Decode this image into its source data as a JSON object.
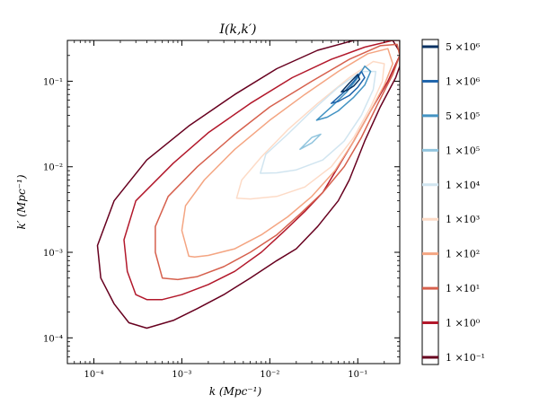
{
  "chart_data": {
    "type": "contour",
    "title": "I(k,k′)",
    "xlabel": "k (Mpc⁻¹)",
    "ylabel": "k′ (Mpc⁻¹)",
    "xscale": "log",
    "yscale": "log",
    "xlim": [
      5e-05,
      0.3
    ],
    "ylim": [
      5e-05,
      0.3
    ],
    "xticks": [
      {
        "value": 0.0001,
        "label": "10⁻⁴"
      },
      {
        "value": 0.001,
        "label": "10⁻³"
      },
      {
        "value": 0.01,
        "label": "10⁻²"
      },
      {
        "value": 0.1,
        "label": "10⁻¹"
      }
    ],
    "yticks": [
      {
        "value": 0.0001,
        "label": "10⁻⁴"
      },
      {
        "value": 0.001,
        "label": "10⁻³"
      },
      {
        "value": 0.01,
        "label": "10⁻²"
      },
      {
        "value": 0.1,
        "label": "10⁻¹"
      }
    ],
    "levels": [
      {
        "label": "1 ×10⁻¹",
        "value": 0.1,
        "color": "#67001f",
        "path": [
          [
            0.00017,
            0.00025
          ],
          [
            0.00012,
            0.0005
          ],
          [
            0.00011,
            0.0012
          ],
          [
            0.00017,
            0.004
          ],
          [
            0.0004,
            0.012
          ],
          [
            0.0012,
            0.03
          ],
          [
            0.004,
            0.07
          ],
          [
            0.012,
            0.14
          ],
          [
            0.035,
            0.23
          ],
          [
            0.09,
            0.3
          ],
          [
            0.25,
            0.3
          ],
          [
            0.3,
            0.22
          ],
          [
            0.3,
            0.15
          ],
          [
            0.27,
            0.11
          ],
          [
            0.18,
            0.05
          ],
          [
            0.12,
            0.02
          ],
          [
            0.08,
            0.007
          ],
          [
            0.06,
            0.004
          ],
          [
            0.035,
            0.002
          ],
          [
            0.02,
            0.0011
          ],
          [
            0.012,
            0.0008
          ],
          [
            0.006,
            0.0005
          ],
          [
            0.003,
            0.00032
          ],
          [
            0.0015,
            0.00022
          ],
          [
            0.0008,
            0.00016
          ],
          [
            0.0004,
            0.00013
          ],
          [
            0.00025,
            0.00015
          ],
          [
            0.00017,
            0.00025
          ]
        ]
      },
      {
        "label": "1 ×10⁰",
        "value": 1,
        "color": "#b2182b",
        "path": [
          [
            0.0003,
            0.00032
          ],
          [
            0.00024,
            0.0006
          ],
          [
            0.00022,
            0.0014
          ],
          [
            0.0003,
            0.004
          ],
          [
            0.0008,
            0.011
          ],
          [
            0.002,
            0.025
          ],
          [
            0.006,
            0.055
          ],
          [
            0.018,
            0.11
          ],
          [
            0.05,
            0.18
          ],
          [
            0.12,
            0.25
          ],
          [
            0.25,
            0.3
          ],
          [
            0.3,
            0.3
          ],
          [
            0.3,
            0.2
          ],
          [
            0.22,
            0.1
          ],
          [
            0.14,
            0.045
          ],
          [
            0.09,
            0.02
          ],
          [
            0.06,
            0.01
          ],
          [
            0.04,
            0.005
          ],
          [
            0.025,
            0.003
          ],
          [
            0.014,
            0.0017
          ],
          [
            0.008,
            0.001
          ],
          [
            0.004,
            0.0006
          ],
          [
            0.002,
            0.00042
          ],
          [
            0.001,
            0.00032
          ],
          [
            0.0006,
            0.00028
          ],
          [
            0.0004,
            0.00028
          ],
          [
            0.0003,
            0.00032
          ]
        ]
      },
      {
        "label": "1 ×10¹",
        "value": 10,
        "color": "#d6604d",
        "path": [
          [
            0.0006,
            0.0005
          ],
          [
            0.0005,
            0.001
          ],
          [
            0.0005,
            0.002
          ],
          [
            0.0007,
            0.0045
          ],
          [
            0.0015,
            0.01
          ],
          [
            0.004,
            0.024
          ],
          [
            0.01,
            0.05
          ],
          [
            0.03,
            0.1
          ],
          [
            0.08,
            0.18
          ],
          [
            0.18,
            0.26
          ],
          [
            0.28,
            0.27
          ],
          [
            0.3,
            0.2
          ],
          [
            0.25,
            0.12
          ],
          [
            0.17,
            0.055
          ],
          [
            0.11,
            0.022
          ],
          [
            0.07,
            0.01
          ],
          [
            0.04,
            0.005
          ],
          [
            0.022,
            0.0028
          ],
          [
            0.012,
            0.0016
          ],
          [
            0.006,
            0.001
          ],
          [
            0.003,
            0.00068
          ],
          [
            0.0015,
            0.00052
          ],
          [
            0.0009,
            0.00048
          ],
          [
            0.0006,
            0.0005
          ]
        ]
      },
      {
        "label": "1 ×10²",
        "value": 100,
        "color": "#f4a582",
        "path": [
          [
            0.0012,
            0.0009
          ],
          [
            0.001,
            0.0018
          ],
          [
            0.0011,
            0.0035
          ],
          [
            0.0018,
            0.007
          ],
          [
            0.004,
            0.016
          ],
          [
            0.01,
            0.035
          ],
          [
            0.025,
            0.07
          ],
          [
            0.06,
            0.13
          ],
          [
            0.13,
            0.21
          ],
          [
            0.22,
            0.24
          ],
          [
            0.25,
            0.16
          ],
          [
            0.2,
            0.09
          ],
          [
            0.14,
            0.045
          ],
          [
            0.09,
            0.02
          ],
          [
            0.055,
            0.009
          ],
          [
            0.03,
            0.0045
          ],
          [
            0.016,
            0.0026
          ],
          [
            0.008,
            0.0016
          ],
          [
            0.004,
            0.0011
          ],
          [
            0.002,
            0.00092
          ],
          [
            0.0014,
            0.00088
          ],
          [
            0.0012,
            0.0009
          ]
        ]
      },
      {
        "label": "1 ×10³",
        "value": 1000,
        "color": "#fddbc7",
        "path": [
          [
            0.0042,
            0.0043
          ],
          [
            0.0048,
            0.007
          ],
          [
            0.008,
            0.013
          ],
          [
            0.016,
            0.027
          ],
          [
            0.035,
            0.055
          ],
          [
            0.08,
            0.11
          ],
          [
            0.15,
            0.17
          ],
          [
            0.2,
            0.16
          ],
          [
            0.19,
            0.1
          ],
          [
            0.14,
            0.05
          ],
          [
            0.09,
            0.022
          ],
          [
            0.05,
            0.01
          ],
          [
            0.025,
            0.0058
          ],
          [
            0.012,
            0.0045
          ],
          [
            0.006,
            0.0042
          ],
          [
            0.0042,
            0.0043
          ]
        ]
      },
      {
        "label": "1 ×10⁴",
        "value": 10000,
        "color": "#d1e5f0",
        "path": [
          [
            0.0078,
            0.0084
          ],
          [
            0.009,
            0.014
          ],
          [
            0.016,
            0.024
          ],
          [
            0.03,
            0.045
          ],
          [
            0.06,
            0.085
          ],
          [
            0.11,
            0.13
          ],
          [
            0.16,
            0.13
          ],
          [
            0.15,
            0.08
          ],
          [
            0.11,
            0.04
          ],
          [
            0.07,
            0.02
          ],
          [
            0.04,
            0.012
          ],
          [
            0.02,
            0.0092
          ],
          [
            0.012,
            0.0085
          ],
          [
            0.0078,
            0.0084
          ]
        ]
      },
      {
        "label": "1 ×10⁵",
        "value": 100000,
        "color": "#92c5de",
        "path": [
          [
            0.022,
            0.016
          ],
          [
            0.03,
            0.022
          ],
          [
            0.038,
            0.024
          ],
          [
            0.03,
            0.019
          ],
          [
            0.022,
            0.016
          ]
        ]
      },
      {
        "label": "5 ×10⁵",
        "value": 500000,
        "color": "#4393c3",
        "path": [
          [
            0.034,
            0.035
          ],
          [
            0.05,
            0.05
          ],
          [
            0.075,
            0.075
          ],
          [
            0.1,
            0.11
          ],
          [
            0.12,
            0.15
          ],
          [
            0.14,
            0.13
          ],
          [
            0.12,
            0.09
          ],
          [
            0.09,
            0.065
          ],
          [
            0.06,
            0.045
          ],
          [
            0.045,
            0.038
          ],
          [
            0.034,
            0.035
          ]
        ]
      },
      {
        "label": "1 ×10⁶",
        "value": 1000000,
        "color": "#2166ac",
        "path": [
          [
            0.05,
            0.055
          ],
          [
            0.07,
            0.075
          ],
          [
            0.09,
            0.1
          ],
          [
            0.11,
            0.13
          ],
          [
            0.12,
            0.11
          ],
          [
            0.1,
            0.085
          ],
          [
            0.08,
            0.068
          ],
          [
            0.06,
            0.058
          ],
          [
            0.05,
            0.055
          ]
        ]
      },
      {
        "label": "5 ×10⁶",
        "value": 5000000,
        "color": "#053061",
        "path": [
          [
            0.065,
            0.075
          ],
          [
            0.08,
            0.095
          ],
          [
            0.1,
            0.12
          ],
          [
            0.105,
            0.105
          ],
          [
            0.09,
            0.088
          ],
          [
            0.075,
            0.078
          ],
          [
            0.065,
            0.075
          ]
        ]
      }
    ]
  }
}
